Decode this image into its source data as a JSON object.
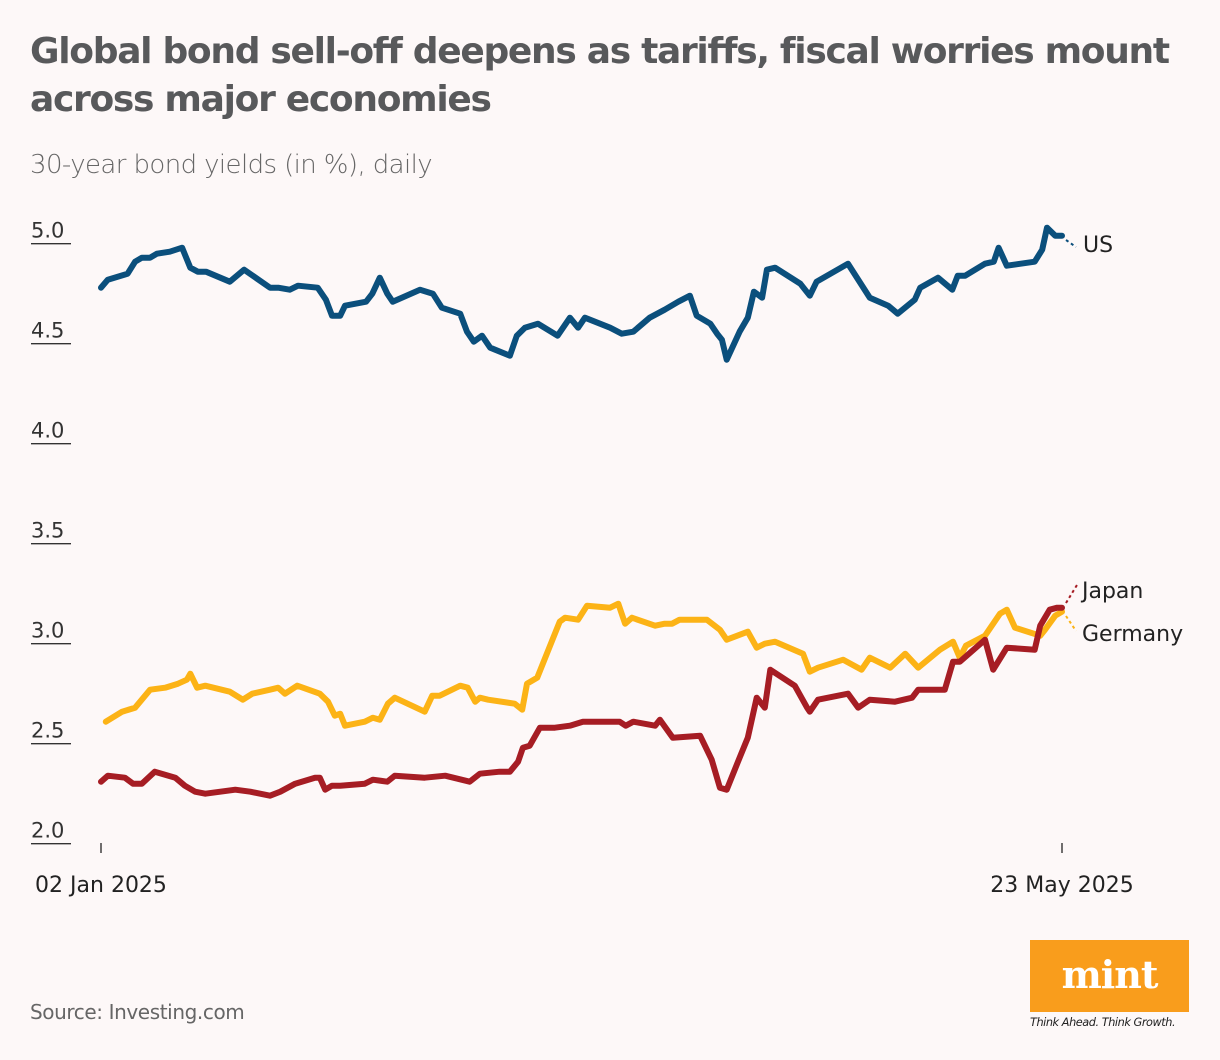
{
  "header": {
    "title": "Global bond sell-off deepens as tariffs, fiscal worries mount across major economies",
    "subtitle": "30-year bond yields (in %), daily"
  },
  "footer": {
    "source": "Source: Investing.com",
    "logo_text": "mint",
    "tagline": "Think Ahead. Think Growth."
  },
  "colors": {
    "background": "#fdf8f8",
    "us": "#0b4f7c",
    "germany": "#fcb316",
    "japan": "#a61d24",
    "logo": "#f99d1c"
  },
  "chart_data": {
    "type": "line",
    "title": "Global bond sell-off deepens as tariffs, fiscal worries mount across major economies",
    "subtitle": "30-year bond yields (in %), daily",
    "xlabel": "",
    "ylabel": "30-year bond yield (%)",
    "x_unit": "days since 02 Jan 2025",
    "xlim": [
      0,
      141
    ],
    "ylim": [
      2.0,
      5.0
    ],
    "yticks": [
      2.0,
      2.5,
      3.0,
      3.5,
      4.0,
      4.5,
      5.0
    ],
    "ytick_labels": [
      "2.0",
      "2.5",
      "3.0",
      "3.5",
      "4.0",
      "4.5",
      "5.0"
    ],
    "xticks": [
      0,
      141
    ],
    "xtick_labels": [
      "02 Jan 2025",
      "23 May 2025"
    ],
    "grid": false,
    "legend": "inline labels at line ends (right)",
    "series": [
      {
        "name": "US",
        "color": "#0b4f7c",
        "points": [
          [
            0,
            4.78
          ],
          [
            1.0,
            4.82
          ],
          [
            3.9,
            4.85
          ],
          [
            5.0,
            4.91
          ],
          [
            6.0,
            4.93
          ],
          [
            7.2,
            4.93
          ],
          [
            8.2,
            4.95
          ],
          [
            10.1,
            4.96
          ],
          [
            11.9,
            4.98
          ],
          [
            13.1,
            4.88
          ],
          [
            14.2,
            4.86
          ],
          [
            15.4,
            4.86
          ],
          [
            18.9,
            4.81
          ],
          [
            21.0,
            4.87
          ],
          [
            24.8,
            4.78
          ],
          [
            26.0,
            4.78
          ],
          [
            27.7,
            4.77
          ],
          [
            28.9,
            4.79
          ],
          [
            31.8,
            4.78
          ],
          [
            33.0,
            4.72
          ],
          [
            33.9,
            4.64
          ],
          [
            35.1,
            4.64
          ],
          [
            35.8,
            4.69
          ],
          [
            38.9,
            4.71
          ],
          [
            39.8,
            4.75
          ],
          [
            40.9,
            4.83
          ],
          [
            42.0,
            4.75
          ],
          [
            42.8,
            4.71
          ],
          [
            46.8,
            4.77
          ],
          [
            48.7,
            4.75
          ],
          [
            50.0,
            4.68
          ],
          [
            52.7,
            4.65
          ],
          [
            53.7,
            4.56
          ],
          [
            54.7,
            4.51
          ],
          [
            55.9,
            4.54
          ],
          [
            57.1,
            4.48
          ],
          [
            60.0,
            4.44
          ],
          [
            61.0,
            4.54
          ],
          [
            62.2,
            4.58
          ],
          [
            64.1,
            4.6
          ],
          [
            67.0,
            4.54
          ],
          [
            68.8,
            4.63
          ],
          [
            70.0,
            4.58
          ],
          [
            71.0,
            4.63
          ],
          [
            74.7,
            4.58
          ],
          [
            76.4,
            4.55
          ],
          [
            78.1,
            4.56
          ],
          [
            80.5,
            4.63
          ],
          [
            82.7,
            4.67
          ],
          [
            84.7,
            4.71
          ],
          [
            86.4,
            4.74
          ],
          [
            87.4,
            4.64
          ],
          [
            89.4,
            4.6
          ],
          [
            90.4,
            4.55
          ],
          [
            91.1,
            4.52
          ],
          [
            91.8,
            4.42
          ],
          [
            93.7,
            4.56
          ],
          [
            94.9,
            4.63
          ],
          [
            95.8,
            4.76
          ],
          [
            97.0,
            4.73
          ],
          [
            97.7,
            4.87
          ],
          [
            98.9,
            4.88
          ],
          [
            102.6,
            4.8
          ],
          [
            104.0,
            4.74
          ],
          [
            105.0,
            4.81
          ],
          [
            109.6,
            4.9
          ],
          [
            112.8,
            4.73
          ],
          [
            115.5,
            4.69
          ],
          [
            116.9,
            4.65
          ],
          [
            119.4,
            4.72
          ],
          [
            120.2,
            4.78
          ],
          [
            122.8,
            4.83
          ],
          [
            124.9,
            4.77
          ],
          [
            125.7,
            4.84
          ],
          [
            126.8,
            4.84
          ],
          [
            129.7,
            4.9
          ],
          [
            131.0,
            4.91
          ],
          [
            131.7,
            4.98
          ],
          [
            132.9,
            4.89
          ],
          [
            137.0,
            4.91
          ],
          [
            138.1,
            4.97
          ],
          [
            138.8,
            5.08
          ],
          [
            140.0,
            5.04
          ],
          [
            141.0,
            5.04
          ]
        ]
      },
      {
        "name": "Japan",
        "color": "#a61d24",
        "points": [
          [
            0,
            2.31
          ],
          [
            1.0,
            2.34
          ],
          [
            3.5,
            2.33
          ],
          [
            4.7,
            2.3
          ],
          [
            6.0,
            2.3
          ],
          [
            7.9,
            2.36
          ],
          [
            10.9,
            2.33
          ],
          [
            12.3,
            2.29
          ],
          [
            13.8,
            2.26
          ],
          [
            15.3,
            2.25
          ],
          [
            17.5,
            2.26
          ],
          [
            19.7,
            2.27
          ],
          [
            21.9,
            2.26
          ],
          [
            24.8,
            2.24
          ],
          [
            26.3,
            2.26
          ],
          [
            28.5,
            2.3
          ],
          [
            31.4,
            2.33
          ],
          [
            32.1,
            2.33
          ],
          [
            32.9,
            2.27
          ],
          [
            33.9,
            2.29
          ],
          [
            35.1,
            2.29
          ],
          [
            38.7,
            2.3
          ],
          [
            39.9,
            2.32
          ],
          [
            42.0,
            2.31
          ],
          [
            43.1,
            2.34
          ],
          [
            47.5,
            2.33
          ],
          [
            50.5,
            2.34
          ],
          [
            54.1,
            2.31
          ],
          [
            55.6,
            2.35
          ],
          [
            58.5,
            2.36
          ],
          [
            60.0,
            2.36
          ],
          [
            61.2,
            2.41
          ],
          [
            61.9,
            2.48
          ],
          [
            62.9,
            2.49
          ],
          [
            64.4,
            2.58
          ],
          [
            66.6,
            2.58
          ],
          [
            68.8,
            2.59
          ],
          [
            70.7,
            2.61
          ],
          [
            76.1,
            2.61
          ],
          [
            77.0,
            2.59
          ],
          [
            78.1,
            2.61
          ],
          [
            81.3,
            2.59
          ],
          [
            82.0,
            2.62
          ],
          [
            83.9,
            2.53
          ],
          [
            87.9,
            2.54
          ],
          [
            89.6,
            2.42
          ],
          [
            90.8,
            2.28
          ],
          [
            91.8,
            2.27
          ],
          [
            93.7,
            2.43
          ],
          [
            94.9,
            2.53
          ],
          [
            96.2,
            2.73
          ],
          [
            97.4,
            2.68
          ],
          [
            98.2,
            2.87
          ],
          [
            101.8,
            2.79
          ],
          [
            103.6,
            2.68
          ],
          [
            104.0,
            2.66
          ],
          [
            105.2,
            2.72
          ],
          [
            109.6,
            2.75
          ],
          [
            111.1,
            2.68
          ],
          [
            112.8,
            2.72
          ],
          [
            116.5,
            2.71
          ],
          [
            119.0,
            2.73
          ],
          [
            119.9,
            2.77
          ],
          [
            123.8,
            2.77
          ],
          [
            125.0,
            2.91
          ],
          [
            126.0,
            2.91
          ],
          [
            129.7,
            3.02
          ],
          [
            130.9,
            2.87
          ],
          [
            132.9,
            2.98
          ],
          [
            137.0,
            2.97
          ],
          [
            137.8,
            3.09
          ],
          [
            139.2,
            3.17
          ],
          [
            140.3,
            3.18
          ],
          [
            141.0,
            3.18
          ]
        ]
      },
      {
        "name": "Germany",
        "color": "#fcb316",
        "points": [
          [
            0.7,
            2.61
          ],
          [
            3.1,
            2.66
          ],
          [
            5.0,
            2.68
          ],
          [
            7.2,
            2.77
          ],
          [
            9.4,
            2.78
          ],
          [
            11.3,
            2.8
          ],
          [
            12.6,
            2.82
          ],
          [
            13.1,
            2.85
          ],
          [
            14.1,
            2.78
          ],
          [
            15.3,
            2.79
          ],
          [
            18.9,
            2.76
          ],
          [
            20.8,
            2.72
          ],
          [
            22.2,
            2.75
          ],
          [
            24.8,
            2.77
          ],
          [
            26.0,
            2.78
          ],
          [
            27.0,
            2.75
          ],
          [
            28.8,
            2.79
          ],
          [
            32.1,
            2.75
          ],
          [
            33.3,
            2.71
          ],
          [
            34.3,
            2.64
          ],
          [
            35.1,
            2.65
          ],
          [
            35.8,
            2.59
          ],
          [
            38.7,
            2.61
          ],
          [
            39.9,
            2.63
          ],
          [
            40.9,
            2.62
          ],
          [
            42.1,
            2.7
          ],
          [
            43.1,
            2.73
          ],
          [
            47.5,
            2.66
          ],
          [
            48.6,
            2.74
          ],
          [
            49.7,
            2.74
          ],
          [
            52.7,
            2.79
          ],
          [
            53.8,
            2.78
          ],
          [
            54.9,
            2.71
          ],
          [
            55.6,
            2.73
          ],
          [
            56.8,
            2.72
          ],
          [
            60.7,
            2.7
          ],
          [
            61.8,
            2.67
          ],
          [
            62.5,
            2.8
          ],
          [
            64.0,
            2.83
          ],
          [
            67.3,
            3.11
          ],
          [
            68.1,
            3.13
          ],
          [
            70.0,
            3.12
          ],
          [
            71.3,
            3.19
          ],
          [
            74.7,
            3.18
          ],
          [
            75.9,
            3.2
          ],
          [
            76.9,
            3.1
          ],
          [
            77.9,
            3.13
          ],
          [
            81.3,
            3.09
          ],
          [
            82.7,
            3.1
          ],
          [
            83.8,
            3.1
          ],
          [
            84.9,
            3.12
          ],
          [
            88.9,
            3.12
          ],
          [
            90.8,
            3.07
          ],
          [
            91.8,
            3.02
          ],
          [
            94.9,
            3.06
          ],
          [
            96.2,
            2.98
          ],
          [
            97.4,
            3.0
          ],
          [
            98.9,
            3.01
          ],
          [
            103.0,
            2.95
          ],
          [
            104.0,
            2.86
          ],
          [
            105.2,
            2.88
          ],
          [
            108.9,
            2.92
          ],
          [
            111.6,
            2.87
          ],
          [
            112.8,
            2.93
          ],
          [
            115.8,
            2.88
          ],
          [
            118.0,
            2.95
          ],
          [
            119.9,
            2.88
          ],
          [
            123.1,
            2.97
          ],
          [
            125.0,
            3.01
          ],
          [
            126.0,
            2.93
          ],
          [
            126.9,
            2.99
          ],
          [
            129.7,
            3.04
          ],
          [
            131.9,
            3.15
          ],
          [
            132.9,
            3.17
          ],
          [
            134.1,
            3.08
          ],
          [
            137.8,
            3.04
          ],
          [
            138.5,
            3.07
          ],
          [
            140.0,
            3.14
          ],
          [
            141.0,
            3.16
          ]
        ]
      }
    ]
  }
}
